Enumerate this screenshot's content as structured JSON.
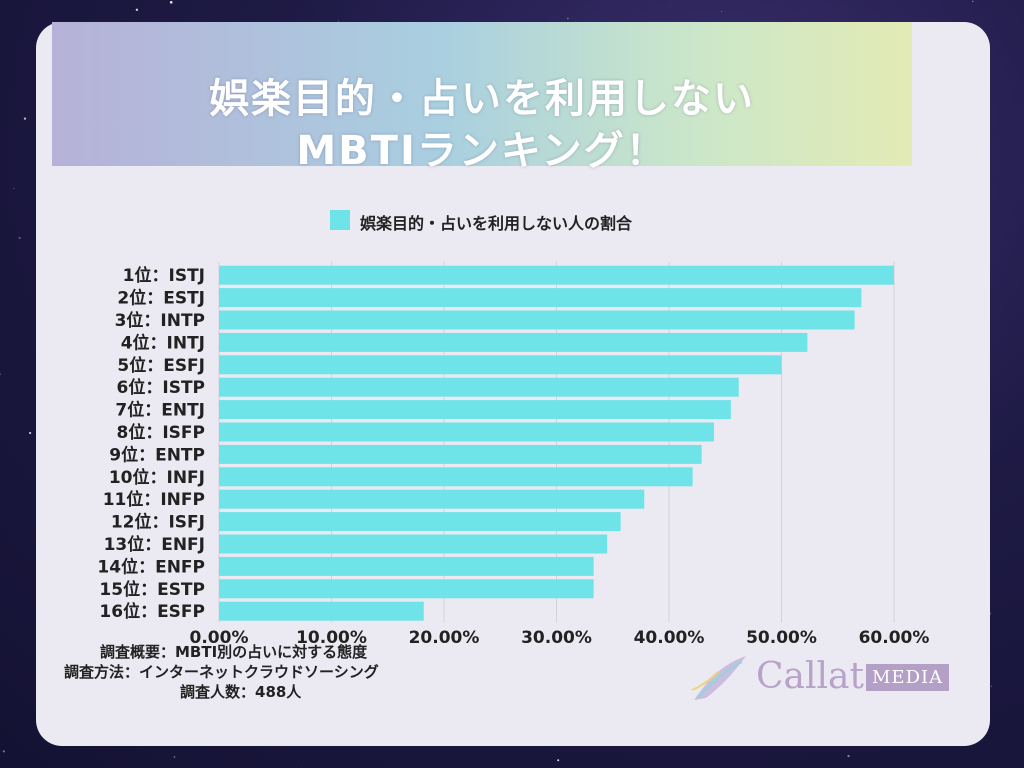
{
  "title": {
    "line1": "娯楽目的・占いを利用しない",
    "line2": "MBTIランキング！"
  },
  "legend": {
    "label": "娯楽目的・占いを利用しない人の割合"
  },
  "chart_data": {
    "type": "bar",
    "orientation": "horizontal",
    "categories": [
      "1位：ISTJ",
      "2位：ESTJ",
      "3位：INTP",
      "4位：INTJ",
      "5位：ESFJ",
      "6位：ISTP",
      "7位：ENTJ",
      "8位：ISFP",
      "9位：ENTP",
      "10位：INFJ",
      "11位：INFP",
      "12位：ISFJ",
      "13位：ENFJ",
      "14位：ENFP",
      "15位：ESTP",
      "16位：ESFP"
    ],
    "series": [
      {
        "name": "娯楽目的・占いを利用しない人の割合",
        "values": [
          60.0,
          57.1,
          56.5,
          52.3,
          50.0,
          46.2,
          45.5,
          44.0,
          42.9,
          42.1,
          37.8,
          35.7,
          34.5,
          33.3,
          33.3,
          18.2
        ]
      }
    ],
    "x_ticks": [
      "0.00%",
      "10.00%",
      "20.00%",
      "30.00%",
      "40.00%",
      "50.00%",
      "60.00%"
    ],
    "xlim": [
      0,
      60
    ],
    "grid": true,
    "legend_position": "top",
    "bar_color": "#6ee3e8"
  },
  "notes": [
    "調査概要：MBTI別の占いに対する態度",
    "調査方法：インターネットクラウドソーシング",
    "調査人数：488人"
  ],
  "logo": {
    "name": "Callat",
    "badge": "MEDIA"
  }
}
